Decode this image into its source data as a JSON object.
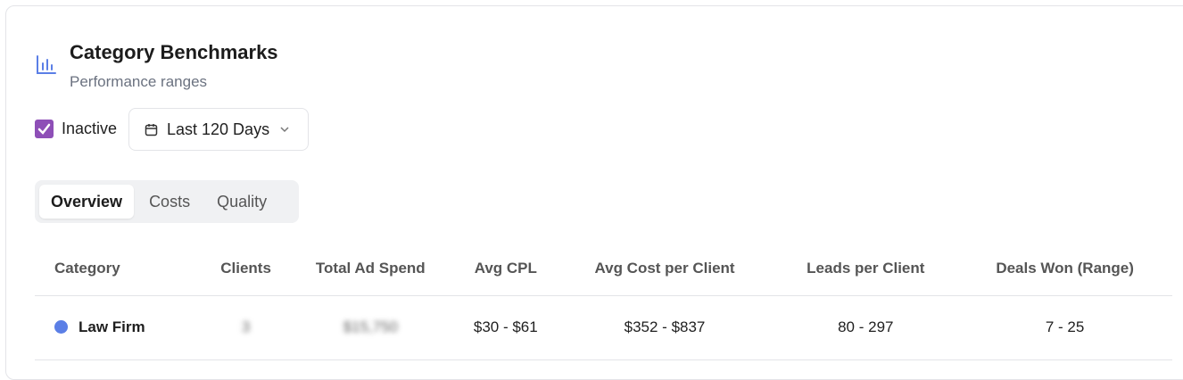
{
  "header": {
    "title": "Category Benchmarks",
    "subtitle": "Performance ranges",
    "icon": "bar-chart-icon"
  },
  "filters": {
    "inactive_label": "Inactive",
    "inactive_checked": true,
    "date_range": "Last 120 Days"
  },
  "tabs": [
    {
      "label": "Overview",
      "active": true
    },
    {
      "label": "Costs"
    },
    {
      "label": "Quality"
    }
  ],
  "table": {
    "columns": [
      "Category",
      "Clients",
      "Total Ad Spend",
      "Avg CPL",
      "Avg Cost per Client",
      "Leads per Client",
      "Deals Won (Range)"
    ],
    "rows": [
      {
        "category": "Law Firm",
        "color": "#5b7fe6",
        "clients": "3",
        "spend": "$15,750",
        "cpl": "$30 - $61",
        "cost_per_client": "$352 - $837",
        "leads": "80 - 297",
        "deals": "7 - 25"
      }
    ]
  },
  "colors": {
    "accent": "#8e4fb7",
    "icon": "#5b7fe6"
  }
}
